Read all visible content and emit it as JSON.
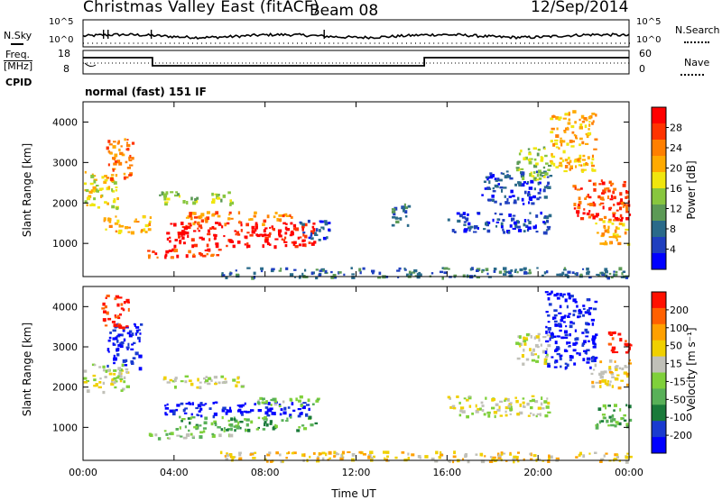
{
  "header": {
    "title": "Christmas Valley East (fitACF)",
    "beam": "Beam 08",
    "date": "12/Sep/2014"
  },
  "panels": {
    "nsky": {
      "label": "N.Sky",
      "ticks_left": [
        "10^5",
        "10^0"
      ],
      "ticks_right": [
        "10^5",
        "10^0"
      ],
      "right_label": "N.Search"
    },
    "freq": {
      "label_lines": [
        "Freq.",
        "[MHz]"
      ],
      "ticks_left": [
        "18",
        "8"
      ],
      "ticks_right": [
        "60",
        "0"
      ],
      "right_label": "Nave"
    },
    "cpid": {
      "label": "CPID",
      "value": "normal (fast) 151 IF"
    }
  },
  "chart_data": [
    {
      "type": "heatmap",
      "name": "power",
      "ylabel": "Slant Range [km]",
      "yticks": [
        "1000",
        "2000",
        "3000",
        "4000"
      ],
      "ylim": [
        180,
        4500
      ],
      "xlim": [
        0,
        24
      ],
      "colorbar": {
        "label": "Power [dB]",
        "ticks": [
          "4",
          "8",
          "12",
          "16",
          "20",
          "24",
          "28"
        ],
        "colors": [
          "#0000ff",
          "#1f3fbf",
          "#2a6a8a",
          "#5c9a56",
          "#88c63e",
          "#f0e60e",
          "#ffaa00",
          "#ff7f00",
          "#ff3300",
          "#ff0000"
        ]
      },
      "regions": [
        {
          "t0": 3.6,
          "t1": 10.3,
          "r0": 950,
          "r1": 1550,
          "level": 9
        },
        {
          "t0": 4.5,
          "t1": 9.3,
          "r0": 1500,
          "r1": 1800,
          "level": 7
        },
        {
          "t0": 2.8,
          "t1": 6.0,
          "r0": 650,
          "r1": 900,
          "level": 8
        },
        {
          "t0": 0.8,
          "t1": 3.0,
          "r0": 1300,
          "r1": 1700,
          "level": 6
        },
        {
          "t0": 0.0,
          "t1": 1.5,
          "r0": 1900,
          "r1": 2800,
          "level": 5
        },
        {
          "t0": 1.0,
          "t1": 2.2,
          "r0": 2600,
          "r1": 3600,
          "level": 7
        },
        {
          "t0": 3.3,
          "t1": 6.5,
          "r0": 2000,
          "r1": 2300,
          "level": 4
        },
        {
          "t0": 9.5,
          "t1": 10.8,
          "r0": 1100,
          "r1": 1600,
          "level": 1
        },
        {
          "t0": 13.5,
          "t1": 14.3,
          "r0": 1400,
          "r1": 2000,
          "level": 2
        },
        {
          "t0": 16.0,
          "t1": 20.5,
          "r0": 1300,
          "r1": 1800,
          "level": 1
        },
        {
          "t0": 17.5,
          "t1": 20.5,
          "r0": 2000,
          "r1": 2800,
          "level": 1
        },
        {
          "t0": 19.0,
          "t1": 20.5,
          "r0": 2600,
          "r1": 3400,
          "level": 4
        },
        {
          "t0": 20.5,
          "t1": 22.5,
          "r0": 2800,
          "r1": 4300,
          "level": 6
        },
        {
          "t0": 21.5,
          "t1": 24.0,
          "r0": 1600,
          "r1": 2600,
          "level": 8
        },
        {
          "t0": 22.5,
          "t1": 24.0,
          "r0": 1000,
          "r1": 1600,
          "level": 6
        },
        {
          "t0": 6.0,
          "t1": 24.0,
          "r0": 180,
          "r1": 420,
          "level": 2
        }
      ]
    },
    {
      "type": "heatmap",
      "name": "velocity",
      "ylabel": "Slant Range [km]",
      "yticks": [
        "1000",
        "2000",
        "3000",
        "4000"
      ],
      "ylim": [
        180,
        4500
      ],
      "xlim": [
        0,
        24
      ],
      "xticks": [
        "00:00",
        "04:00",
        "08:00",
        "12:00",
        "16:00",
        "20:00",
        "00:00"
      ],
      "xlabel": "Time UT",
      "colorbar": {
        "label": "Velocity [m s⁻¹]",
        "ticks": [
          "200",
          "100",
          "50",
          "15",
          "-15",
          "-50",
          "-100",
          "-200"
        ],
        "colors": [
          "#0000ff",
          "#1a3bd0",
          "#1a7a3a",
          "#58b058",
          "#7fd03a",
          "#c0c0b8",
          "#f0d000",
          "#ffa000",
          "#ff6000",
          "#ff1000"
        ]
      },
      "regions": [
        {
          "t0": 3.5,
          "t1": 10.0,
          "r0": 1300,
          "r1": 1650,
          "level": 0
        },
        {
          "t0": 7.5,
          "t1": 10.3,
          "r0": 1550,
          "r1": 1800,
          "level": 4
        },
        {
          "t0": 4.0,
          "t1": 10.2,
          "r0": 950,
          "r1": 1300,
          "level": 3
        },
        {
          "t0": 2.8,
          "t1": 6.5,
          "r0": 750,
          "r1": 950,
          "level": 4
        },
        {
          "t0": 0.0,
          "t1": 2.0,
          "r0": 1900,
          "r1": 2600,
          "level": 5
        },
        {
          "t0": 1.0,
          "t1": 2.5,
          "r0": 2500,
          "r1": 3600,
          "level": 0
        },
        {
          "t0": 0.8,
          "t1": 2.0,
          "r0": 3500,
          "r1": 4300,
          "level": 9
        },
        {
          "t0": 3.5,
          "t1": 7.0,
          "r0": 2000,
          "r1": 2300,
          "level": 5
        },
        {
          "t0": 6.0,
          "t1": 24.0,
          "r0": 180,
          "r1": 420,
          "level": 6
        },
        {
          "t0": 16.0,
          "t1": 20.5,
          "r0": 1300,
          "r1": 1800,
          "level": 5
        },
        {
          "t0": 19.0,
          "t1": 20.5,
          "r0": 2600,
          "r1": 3400,
          "level": 5
        },
        {
          "t0": 20.3,
          "t1": 22.5,
          "r0": 2500,
          "r1": 4400,
          "level": 0
        },
        {
          "t0": 22.3,
          "t1": 24.0,
          "r0": 2000,
          "r1": 2700,
          "level": 6
        },
        {
          "t0": 23.0,
          "t1": 24.0,
          "r0": 2800,
          "r1": 3400,
          "level": 9
        },
        {
          "t0": 22.5,
          "t1": 24.0,
          "r0": 1000,
          "r1": 1600,
          "level": 3
        }
      ]
    }
  ]
}
